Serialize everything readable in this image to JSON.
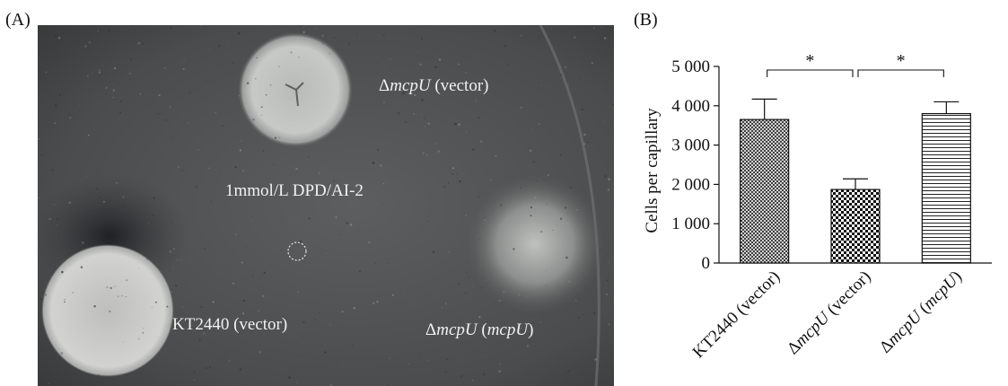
{
  "panels": {
    "a_label": "(A)",
    "b_label": "(B)"
  },
  "photo": {
    "labels": {
      "mutant_vector": {
        "prefix": "Δ",
        "gene": "mcpU",
        "suffix": " (vector)"
      },
      "center": "1mmol/L DPD/AI-2",
      "wildtype": "KT2440 (vector)",
      "complemented": {
        "prefix": "Δ",
        "gene": "mcpU",
        "paren_open": " (",
        "gene2": "mcpU",
        "paren_close": ")"
      }
    },
    "colors": {
      "plate_dark": "#3f4041",
      "plate_mid": "#5a5c5d",
      "halo": "#c9cbc9",
      "text": "#f2f2f2"
    }
  },
  "chart_data": {
    "type": "bar",
    "title": "",
    "xlabel": "",
    "ylabel": "Cells per capillary",
    "ylim": [
      0,
      5000
    ],
    "yticks": [
      0,
      1000,
      2000,
      3000,
      4000,
      5000
    ],
    "ytick_labels": [
      "0",
      "1 000",
      "2 000",
      "3 000",
      "4 000",
      "5 000"
    ],
    "categories": [
      {
        "prefix": "",
        "gene": "",
        "text": "KT2440 (vector)",
        "pattern": "crosshatch"
      },
      {
        "prefix": "Δ",
        "gene": "mcpU",
        "text": " (vector)",
        "pattern": "checker"
      },
      {
        "prefix": "Δ",
        "gene": "mcpU",
        "text": " (",
        "gene2": "mcpU",
        "close": ")",
        "pattern": "horizontal"
      }
    ],
    "values": [
      3650,
      1870,
      3800
    ],
    "errors": [
      520,
      270,
      300
    ],
    "significance": [
      {
        "from": 0,
        "to": 1,
        "label": "*"
      },
      {
        "from": 1,
        "to": 2,
        "label": "*"
      }
    ]
  }
}
